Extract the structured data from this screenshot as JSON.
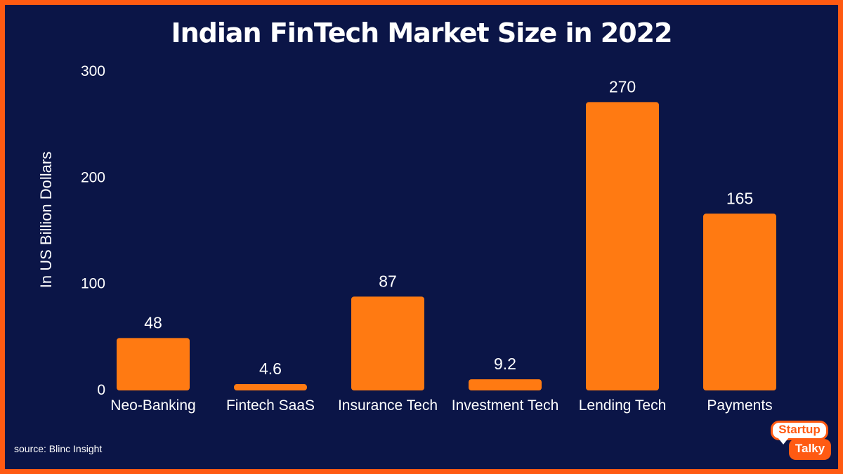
{
  "chart_data": {
    "type": "bar",
    "title": "Indian FinTech Market Size in 2022",
    "xlabel": "",
    "ylabel": "In US Billion Dollars",
    "categories": [
      "Neo-Banking",
      "Fintech SaaS",
      "Insurance Tech",
      "Investment Tech",
      "Lending Tech",
      "Payments"
    ],
    "values": [
      48,
      4.6,
      87,
      9.2,
      270,
      165
    ],
    "value_labels": [
      "48",
      "4.6",
      "87",
      "9.2",
      "270",
      "165"
    ],
    "ylim": [
      0,
      300
    ],
    "yticks": [
      0,
      100,
      200,
      300
    ],
    "ytick_labels": [
      "0",
      "100",
      "200",
      "300"
    ],
    "grid": false,
    "legend": "none",
    "colors": {
      "bar": "#ff7a12",
      "background": "#0b1547",
      "border": "#ff5a12",
      "text": "#ffffff"
    }
  },
  "footer": {
    "source": "source: Blinc Insight"
  },
  "logo": {
    "line1": "Startup",
    "line2": "Talky"
  }
}
